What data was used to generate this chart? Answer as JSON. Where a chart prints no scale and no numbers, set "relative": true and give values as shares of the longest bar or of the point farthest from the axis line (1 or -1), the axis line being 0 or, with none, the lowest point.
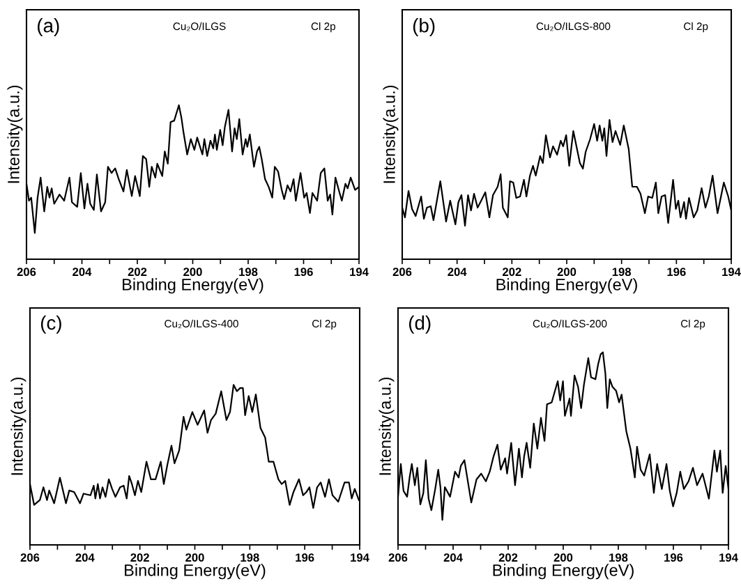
{
  "chart_data": [
    {
      "type": "line",
      "relative": true,
      "xlabel": "Binding Energy(eV)",
      "ylabel": "Intensity(a.u.)",
      "annotations": [
        "(a)",
        "Cu₂O/ILGS",
        "Cl 2p"
      ],
      "xlim": [
        206,
        194
      ],
      "xticks": [
        206,
        {
          "value": 205,
          "label": null
        },
        204,
        {
          "value": 203,
          "label": null
        },
        202,
        {
          "value": 201,
          "label": null
        },
        200,
        {
          "value": 199,
          "label": null
        },
        198,
        {
          "value": 197,
          "label": null
        },
        196,
        {
          "value": 195,
          "label": null
        },
        194
      ],
      "tick_labels": "x",
      "grid": false,
      "legend": false,
      "series": [
        {
          "color": "#000000",
          "x": [
            206.0,
            205.91,
            205.83,
            205.7,
            205.6,
            205.49,
            205.36,
            205.25,
            205.17,
            205.09,
            205.0,
            204.81,
            204.64,
            204.45,
            204.36,
            204.17,
            204.04,
            203.91,
            203.8,
            203.7,
            203.57,
            203.46,
            203.31,
            203.16,
            203.06,
            202.93,
            202.8,
            202.67,
            202.5,
            202.38,
            202.2,
            202.08,
            201.91,
            201.8,
            201.68,
            201.57,
            201.48,
            201.35,
            201.28,
            201.1,
            201.01,
            200.9,
            200.8,
            200.67,
            200.5,
            200.41,
            200.33,
            200.2,
            200.07,
            199.94,
            199.84,
            199.65,
            199.58,
            199.48,
            199.36,
            199.26,
            199.2,
            199.13,
            199.01,
            198.92,
            198.84,
            198.71,
            198.58,
            198.49,
            198.41,
            198.32,
            198.2,
            198.09,
            198.03,
            197.94,
            197.79,
            197.68,
            197.6,
            197.51,
            197.39,
            197.26,
            197.13,
            197.04,
            196.92,
            196.79,
            196.7,
            196.58,
            196.47,
            196.36,
            196.28,
            196.11,
            195.98,
            195.89,
            195.77,
            195.68,
            195.51,
            195.38,
            195.25,
            195.13,
            195.04,
            194.96,
            194.85,
            194.7,
            194.62,
            194.49,
            194.41,
            194.3,
            194.14,
            194.0
          ],
          "values": [
            0.49,
            0.38,
            0.4,
            0.17,
            0.4,
            0.53,
            0.31,
            0.47,
            0.4,
            0.46,
            0.36,
            0.42,
            0.38,
            0.53,
            0.37,
            0.34,
            0.56,
            0.33,
            0.49,
            0.36,
            0.32,
            0.55,
            0.31,
            0.37,
            0.6,
            0.56,
            0.59,
            0.52,
            0.44,
            0.58,
            0.41,
            0.54,
            0.41,
            0.67,
            0.65,
            0.47,
            0.6,
            0.53,
            0.62,
            0.54,
            0.7,
            0.62,
            0.89,
            0.9,
            1.0,
            0.92,
            0.82,
            0.68,
            0.78,
            0.71,
            0.79,
            0.68,
            0.78,
            0.67,
            0.77,
            0.72,
            0.81,
            0.71,
            0.84,
            0.74,
            0.86,
            0.97,
            0.7,
            0.85,
            0.78,
            0.91,
            0.68,
            0.78,
            0.73,
            0.81,
            0.6,
            0.7,
            0.73,
            0.65,
            0.52,
            0.47,
            0.4,
            0.6,
            0.57,
            0.45,
            0.39,
            0.48,
            0.44,
            0.52,
            0.38,
            0.56,
            0.4,
            0.43,
            0.3,
            0.43,
            0.38,
            0.56,
            0.59,
            0.38,
            0.42,
            0.29,
            0.53,
            0.43,
            0.38,
            0.49,
            0.46,
            0.53,
            0.45,
            0.47
          ]
        }
      ]
    },
    {
      "type": "line",
      "relative": true,
      "xlabel": "Binding Energy(eV)",
      "ylabel": "Intensity(a.u.)",
      "annotations": [
        "(b)",
        "Cu₂O/ILGS-800",
        "Cl 2p"
      ],
      "xlim": [
        206,
        194
      ],
      "xticks": [
        206,
        {
          "value": 205,
          "label": null
        },
        204,
        {
          "value": 203,
          "label": null
        },
        202,
        {
          "value": 201,
          "label": null
        },
        200,
        {
          "value": 199,
          "label": null
        },
        198,
        {
          "value": 197,
          "label": null
        },
        196,
        {
          "value": 195,
          "label": null
        },
        194
      ],
      "tick_labels": "x",
      "grid": false,
      "legend": false,
      "series": [
        {
          "color": "#000000",
          "x": [
            206.0,
            205.9,
            205.77,
            205.64,
            205.51,
            205.31,
            205.21,
            205.1,
            204.96,
            204.86,
            204.61,
            204.4,
            204.25,
            204.06,
            203.95,
            203.84,
            203.71,
            203.6,
            203.49,
            203.38,
            203.25,
            203.12,
            202.97,
            202.82,
            202.69,
            202.52,
            202.41,
            202.33,
            202.15,
            202.07,
            201.95,
            201.84,
            201.7,
            201.56,
            201.47,
            201.34,
            201.23,
            201.13,
            200.97,
            200.87,
            200.76,
            200.61,
            200.5,
            200.35,
            200.22,
            200.13,
            200.02,
            199.91,
            199.76,
            199.52,
            199.41,
            199.31,
            199.15,
            199.0,
            198.89,
            198.8,
            198.7,
            198.63,
            198.55,
            198.44,
            198.33,
            198.22,
            198.05,
            197.92,
            197.74,
            197.61,
            197.44,
            197.31,
            197.15,
            197.03,
            196.88,
            196.75,
            196.66,
            196.54,
            196.41,
            196.3,
            196.12,
            196.02,
            195.93,
            195.85,
            195.72,
            195.65,
            195.54,
            195.37,
            195.24,
            195.08,
            194.94,
            194.82,
            194.68,
            194.5,
            194.27,
            194.11,
            194.0
          ],
          "values": [
            0.37,
            0.3,
            0.49,
            0.36,
            0.31,
            0.45,
            0.29,
            0.37,
            0.38,
            0.28,
            0.56,
            0.27,
            0.42,
            0.25,
            0.41,
            0.46,
            0.24,
            0.46,
            0.35,
            0.47,
            0.37,
            0.42,
            0.48,
            0.3,
            0.46,
            0.52,
            0.61,
            0.37,
            0.3,
            0.56,
            0.55,
            0.44,
            0.45,
            0.57,
            0.45,
            0.6,
            0.67,
            0.6,
            0.74,
            0.69,
            0.89,
            0.73,
            0.81,
            0.75,
            0.85,
            0.81,
            0.89,
            0.67,
            0.92,
            0.69,
            0.65,
            0.77,
            0.86,
            0.97,
            0.85,
            0.96,
            0.85,
            0.94,
            0.74,
            1.0,
            0.84,
            0.92,
            0.82,
            0.96,
            0.79,
            0.52,
            0.52,
            0.47,
            0.33,
            0.45,
            0.44,
            0.55,
            0.33,
            0.45,
            0.46,
            0.26,
            0.57,
            0.36,
            0.42,
            0.3,
            0.41,
            0.29,
            0.44,
            0.3,
            0.35,
            0.51,
            0.37,
            0.45,
            0.6,
            0.33,
            0.55,
            0.45,
            0.35
          ]
        }
      ]
    },
    {
      "type": "line",
      "relative": true,
      "xlabel": "Binding Energy(eV)",
      "ylabel": "Intensity(a.u.)",
      "annotations": [
        "(c)",
        "Cu₂O/ILGS-400",
        "Cl 2p"
      ],
      "xlim": [
        206,
        194
      ],
      "xticks": [
        206,
        {
          "value": 205,
          "label": null
        },
        204,
        {
          "value": 203,
          "label": null
        },
        202,
        {
          "value": 201,
          "label": null
        },
        200,
        {
          "value": 199,
          "label": null
        },
        198,
        {
          "value": 197,
          "label": null
        },
        196,
        {
          "value": 195,
          "label": null
        },
        194
      ],
      "tick_labels": "x",
      "grid": false,
      "legend": false,
      "series": [
        {
          "color": "#000000",
          "x": [
            206.0,
            205.85,
            205.64,
            205.51,
            205.38,
            205.3,
            205.12,
            204.91,
            204.69,
            204.57,
            204.39,
            204.18,
            204.05,
            203.8,
            203.68,
            203.62,
            203.53,
            203.45,
            203.36,
            203.25,
            203.13,
            203.01,
            202.89,
            202.72,
            202.59,
            202.48,
            202.39,
            202.29,
            202.18,
            202.07,
            201.95,
            201.76,
            201.6,
            201.43,
            201.24,
            201.13,
            201.0,
            200.85,
            200.74,
            200.57,
            200.41,
            200.31,
            200.09,
            199.9,
            199.66,
            199.54,
            199.41,
            199.24,
            199.04,
            198.85,
            198.72,
            198.59,
            198.47,
            198.35,
            198.25,
            198.17,
            198.04,
            197.91,
            197.78,
            197.61,
            197.44,
            197.31,
            197.14,
            196.96,
            196.84,
            196.71,
            196.55,
            196.41,
            196.21,
            196.06,
            195.94,
            195.83,
            195.69,
            195.55,
            195.42,
            195.26,
            195.12,
            194.99,
            194.78,
            194.55,
            194.39,
            194.29,
            194.18,
            194.03
          ],
          "values": [
            0.38,
            0.25,
            0.28,
            0.36,
            0.28,
            0.34,
            0.26,
            0.42,
            0.26,
            0.34,
            0.33,
            0.26,
            0.32,
            0.31,
            0.37,
            0.29,
            0.38,
            0.29,
            0.36,
            0.3,
            0.41,
            0.35,
            0.3,
            0.36,
            0.37,
            0.29,
            0.43,
            0.38,
            0.31,
            0.4,
            0.33,
            0.52,
            0.41,
            0.41,
            0.52,
            0.38,
            0.5,
            0.62,
            0.51,
            0.59,
            0.8,
            0.72,
            0.83,
            0.75,
            0.84,
            0.7,
            0.78,
            0.82,
            0.96,
            0.78,
            0.83,
            1.0,
            0.96,
            0.98,
            0.98,
            0.81,
            0.93,
            0.83,
            0.94,
            0.73,
            0.67,
            0.52,
            0.52,
            0.41,
            0.38,
            0.4,
            0.25,
            0.33,
            0.41,
            0.31,
            0.33,
            0.36,
            0.23,
            0.36,
            0.39,
            0.3,
            0.41,
            0.31,
            0.27,
            0.39,
            0.39,
            0.29,
            0.35,
            0.28
          ]
        }
      ]
    },
    {
      "type": "line",
      "relative": true,
      "xlabel": "Binding Energy(eV)",
      "ylabel": "Intensity(a.u.)",
      "annotations": [
        "(d)",
        "Cu₂O/ILGS-200",
        "Cl 2p"
      ],
      "xlim": [
        206,
        194
      ],
      "xticks": [
        206,
        {
          "value": 205,
          "label": null
        },
        204,
        {
          "value": 203,
          "label": null
        },
        202,
        {
          "value": 201,
          "label": null
        },
        200,
        {
          "value": 199,
          "label": null
        },
        198,
        {
          "value": 197,
          "label": null
        },
        196,
        {
          "value": 195,
          "label": null
        },
        194
      ],
      "tick_labels": "x",
      "grid": false,
      "legend": false,
      "series": [
        {
          "color": "#000000",
          "x": [
            206.0,
            205.9,
            205.8,
            205.67,
            205.58,
            205.5,
            205.39,
            205.3,
            205.19,
            205.08,
            204.99,
            204.89,
            204.79,
            204.65,
            204.54,
            204.46,
            204.39,
            204.3,
            204.11,
            203.93,
            203.8,
            203.72,
            203.59,
            203.34,
            203.15,
            202.98,
            202.81,
            202.67,
            202.53,
            202.39,
            202.27,
            202.11,
            202.04,
            201.89,
            201.75,
            201.61,
            201.5,
            201.42,
            201.33,
            201.2,
            201.07,
            200.94,
            200.81,
            200.68,
            200.59,
            200.42,
            200.2,
            200.11,
            200.01,
            199.94,
            199.77,
            199.72,
            199.59,
            199.46,
            199.35,
            199.25,
            199.09,
            198.99,
            198.83,
            198.73,
            198.64,
            198.56,
            198.47,
            198.4,
            198.31,
            198.21,
            198.08,
            197.97,
            197.88,
            197.71,
            197.56,
            197.4,
            197.32,
            197.19,
            197.06,
            196.86,
            196.71,
            196.59,
            196.42,
            196.25,
            196.13,
            196.01,
            195.88,
            195.75,
            195.62,
            195.45,
            195.29,
            195.14,
            194.94,
            194.71,
            194.51,
            194.42,
            194.3,
            194.21,
            194.1,
            194.0
          ],
          "values": [
            0.25,
            0.42,
            0.28,
            0.25,
            0.35,
            0.42,
            0.31,
            0.4,
            0.21,
            0.27,
            0.44,
            0.24,
            0.18,
            0.29,
            0.39,
            0.3,
            0.13,
            0.3,
            0.25,
            0.38,
            0.35,
            0.41,
            0.44,
            0.22,
            0.34,
            0.37,
            0.33,
            0.38,
            0.46,
            0.52,
            0.39,
            0.45,
            0.37,
            0.53,
            0.31,
            0.5,
            0.35,
            0.46,
            0.53,
            0.4,
            0.63,
            0.5,
            0.66,
            0.54,
            0.73,
            0.74,
            0.85,
            0.75,
            0.85,
            0.67,
            0.76,
            0.67,
            0.88,
            0.82,
            0.71,
            0.83,
            0.97,
            0.87,
            0.86,
            0.94,
            0.99,
            1.0,
            0.89,
            0.71,
            0.86,
            0.82,
            0.8,
            0.74,
            0.78,
            0.59,
            0.5,
            0.35,
            0.51,
            0.39,
            0.36,
            0.47,
            0.27,
            0.42,
            0.29,
            0.42,
            0.28,
            0.2,
            0.27,
            0.38,
            0.29,
            0.33,
            0.4,
            0.31,
            0.37,
            0.24,
            0.49,
            0.38,
            0.49,
            0.27,
            0.41,
            0.29
          ]
        }
      ]
    }
  ]
}
